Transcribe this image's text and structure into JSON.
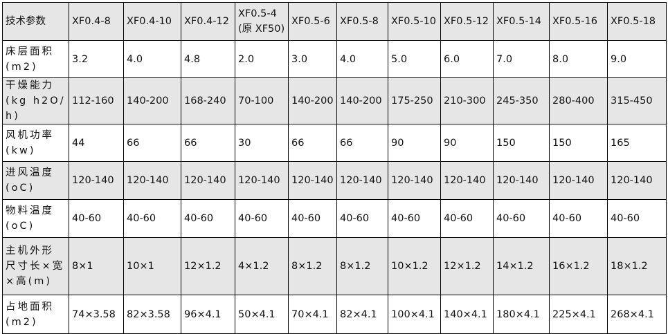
{
  "table": {
    "header": [
      "技术参数",
      "XF0.4-8",
      "XF0.4-10",
      "XF0.4-12",
      "XF0.5-4\n(原 XF50)",
      "XF0.5-6",
      "XF0.5-8",
      "XF0.5-10",
      "XF0.5-12",
      "XF0.5-14",
      "XF0.5-16",
      "XF0.5-18"
    ],
    "rows": [
      {
        "label": "床层面积(m2)",
        "values": [
          "3.2",
          "4.0",
          "4.8",
          "2.0",
          "3.0",
          "4.0",
          "5.0",
          "6.0",
          "7.0",
          "8.0",
          "9.0"
        ]
      },
      {
        "label": "干燥能力(kg h2O/h)",
        "values": [
          "112-160",
          "140-200",
          "168-240",
          "70-100",
          "140-200",
          "140-200",
          "175-250",
          "210-300",
          "245-350",
          "280-400",
          "315-450"
        ]
      },
      {
        "label": "风机功率(kw)",
        "values": [
          "44",
          "66",
          "66",
          "30",
          "66",
          "66",
          "90",
          "90",
          "150",
          "150",
          "165"
        ]
      },
      {
        "label": "进风温度(oC)",
        "values": [
          "120-140",
          "120-140",
          "120-140",
          "120-140",
          "120-140",
          "120-140",
          "120-140",
          "120-140",
          "120-140",
          "120-140",
          "120-140"
        ]
      },
      {
        "label": "物料温度(oC)",
        "values": [
          "40-60",
          "40-60",
          "40-60",
          "40-60",
          "40-60",
          "40-60",
          "40-60",
          "40-60",
          "40-60",
          "40-60",
          "40-60"
        ]
      },
      {
        "label": "主机外形尺寸长×宽×高(m)",
        "values": [
          "8×1",
          "10×1",
          "12×1.2",
          "4×1.2",
          "8×1.2",
          "8×1.2",
          "10×1.2",
          "12×1.2",
          "14×1.2",
          "16×1.2",
          "18×1.2"
        ]
      },
      {
        "label": "占地面积(m2)",
        "values": [
          "74×3.58",
          "82×3.58",
          "96×4.1",
          "50×4.1",
          "70×4.1",
          "82×4.1",
          "100×4.1",
          "140×4.1",
          "180×4.1",
          "225×4.1",
          "268×4.1"
        ]
      }
    ],
    "colors": {
      "shaded_row": "#e6e6e6",
      "border": "#000000"
    }
  }
}
